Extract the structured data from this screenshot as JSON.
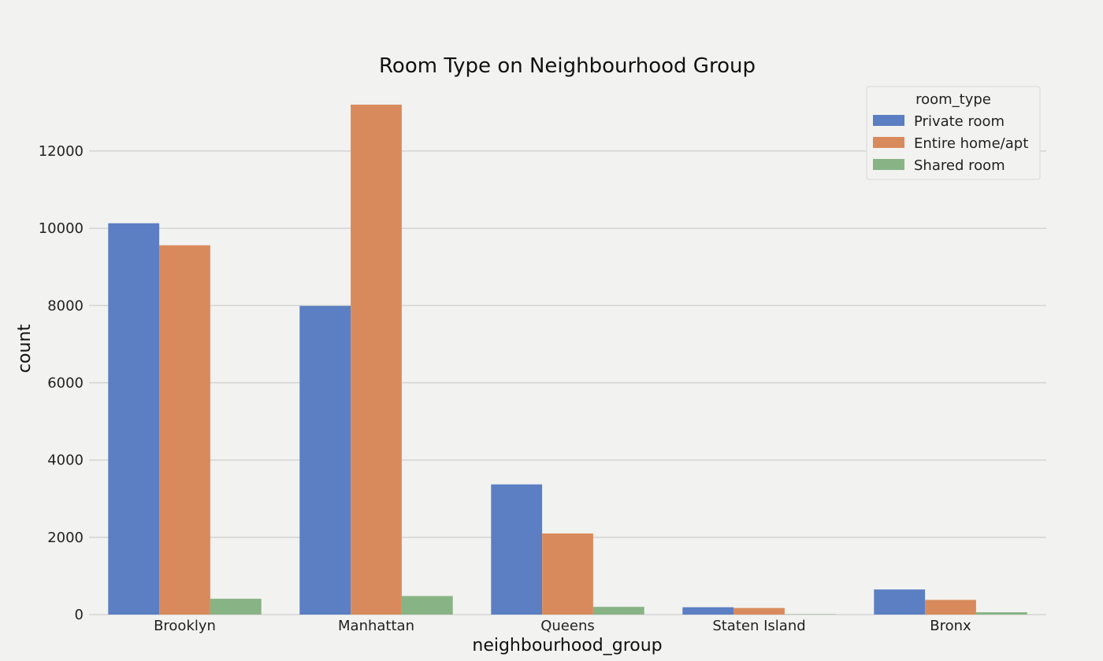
{
  "chart_data": {
    "type": "bar",
    "title": "Room Type on Neighbourhood Group",
    "xlabel": "neighbourhood_group",
    "ylabel": "count",
    "categories": [
      "Brooklyn",
      "Manhattan",
      "Queens",
      "Staten Island",
      "Bronx"
    ],
    "series": [
      {
        "name": "Private room",
        "color": "#5b7fc2",
        "values": [
          10130,
          7990,
          3370,
          190,
          650
        ]
      },
      {
        "name": "Entire home/apt",
        "color": "#d98a5c",
        "values": [
          9560,
          13200,
          2100,
          170,
          380
        ]
      },
      {
        "name": "Shared room",
        "color": "#88b485",
        "values": [
          410,
          480,
          200,
          10,
          60
        ]
      }
    ],
    "legend": {
      "title": "room_type",
      "placement": "top-right"
    },
    "yticks": [
      0,
      2000,
      4000,
      6000,
      8000,
      10000,
      12000
    ],
    "ylim": [
      0,
      13200
    ],
    "grid": "y"
  }
}
